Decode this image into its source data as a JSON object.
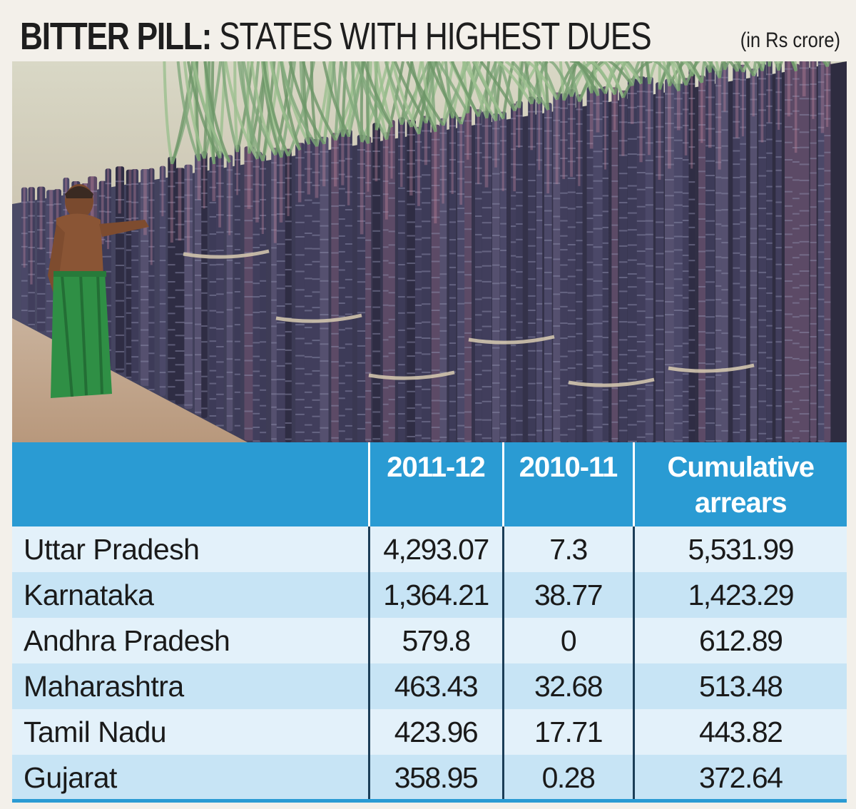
{
  "header": {
    "title_bold": "BITTER PILL:",
    "title_rest": " STATES WITH HIGHEST DUES",
    "unit_note": "(in Rs crore)"
  },
  "photo": {
    "icon": "sugarcane-farmer-photo"
  },
  "colors": {
    "header_blue": "#2a9bd3",
    "row_light": "#e3f1fa",
    "row_dark": "#c7e4f5",
    "cane_purple": "#3a3650"
  },
  "chart_data": {
    "type": "table",
    "title": "BITTER PILL: STATES WITH HIGHEST DUES",
    "unit": "(in Rs crore)",
    "columns": [
      "",
      "2011-12",
      "2010-11",
      "Cumulative arrears"
    ],
    "column_lines": [
      [
        ""
      ],
      [
        "2011-12"
      ],
      [
        "2010-11"
      ],
      [
        "Cumulative",
        "arrears"
      ]
    ],
    "rows": [
      {
        "state": "Uttar Pradesh",
        "y2011_12": "4,293.07",
        "y2010_11": "7.3",
        "cumulative": "5,531.99"
      },
      {
        "state": "Karnataka",
        "y2011_12": "1,364.21",
        "y2010_11": "38.77",
        "cumulative": "1,423.29"
      },
      {
        "state": "Andhra Pradesh",
        "y2011_12": "579.8",
        "y2010_11": "0",
        "cumulative": "612.89"
      },
      {
        "state": "Maharashtra",
        "y2011_12": "463.43",
        "y2010_11": "32.68",
        "cumulative": "513.48"
      },
      {
        "state": "Tamil Nadu",
        "y2011_12": "423.96",
        "y2010_11": "17.71",
        "cumulative": "443.82"
      },
      {
        "state": "Gujarat",
        "y2011_12": "358.95",
        "y2010_11": "0.28",
        "cumulative": "372.64"
      }
    ]
  }
}
